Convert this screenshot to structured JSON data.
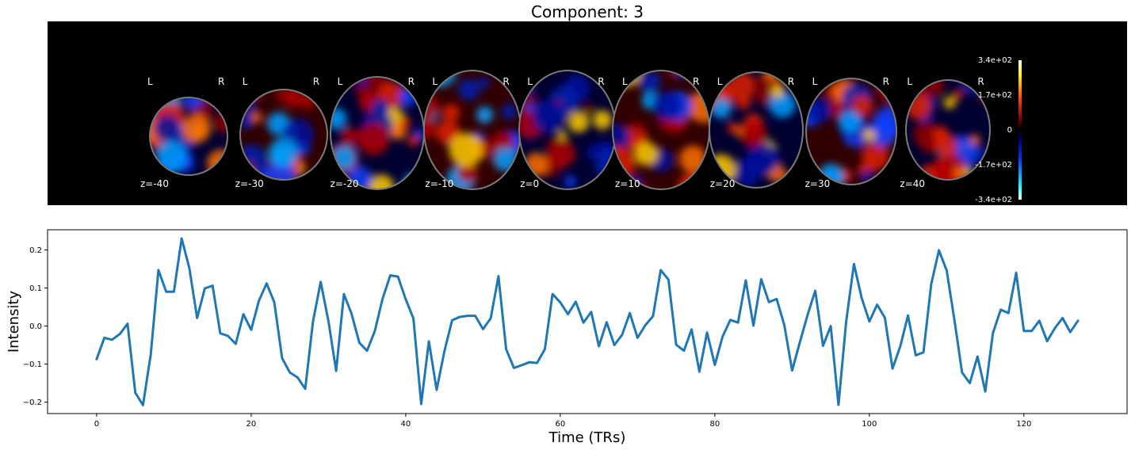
{
  "title": "Component: 3",
  "brain_panel": {
    "orientation_left": "L",
    "orientation_right": "R",
    "slices": [
      "z=-40",
      "z=-30",
      "z=-20",
      "z=-10",
      "z=0",
      "z=10",
      "z=20",
      "z=30",
      "z=40"
    ],
    "colorbar": {
      "ticks": [
        "3.4e+02",
        "1.7e+02",
        "0",
        "-1.7e+02",
        "-3.4e+02"
      ],
      "values": [
        340,
        170,
        0,
        -170,
        -340
      ],
      "colors": [
        "#ffffff",
        "#ffff00",
        "#ff4000",
        "#800000",
        "#000000",
        "#000080",
        "#0040ff",
        "#00ffff",
        "#ffffff"
      ]
    }
  },
  "chart_data": {
    "type": "line",
    "xlabel": "Time (TRs)",
    "ylabel": "Intensity",
    "xlim": [
      -6.35,
      133.35
    ],
    "ylim": [
      -0.23,
      0.253
    ],
    "xticks": [
      0,
      20,
      40,
      60,
      80,
      100,
      120
    ],
    "yticks": [
      -0.2,
      -0.1,
      0.0,
      0.1,
      0.2
    ],
    "ytick_labels": [
      "−0.2",
      "−0.1",
      "0.0",
      "0.1",
      "0.2"
    ],
    "grid": false,
    "series": [
      {
        "color": "#1f77b4",
        "x": [
          0,
          1,
          2,
          3,
          4,
          5,
          6,
          7,
          8,
          9,
          10,
          11,
          12,
          13,
          14,
          15,
          16,
          17,
          18,
          19,
          20,
          21,
          22,
          23,
          24,
          25,
          26,
          27,
          28,
          29,
          30,
          31,
          32,
          33,
          34,
          35,
          36,
          37,
          38,
          39,
          40,
          41,
          42,
          43,
          44,
          45,
          46,
          47,
          48,
          49,
          50,
          51,
          52,
          53,
          54,
          55,
          56,
          57,
          58,
          59,
          60,
          61,
          62,
          63,
          64,
          65,
          66,
          67,
          68,
          69,
          70,
          71,
          72,
          73,
          74,
          75,
          76,
          77,
          78,
          79,
          80,
          81,
          82,
          83,
          84,
          85,
          86,
          87,
          88,
          89,
          90,
          91,
          92,
          93,
          94,
          95,
          96,
          97,
          98,
          99,
          100,
          101,
          102,
          103,
          104,
          105,
          106,
          107,
          108,
          109,
          110,
          111,
          112,
          113,
          114,
          115,
          116,
          117,
          118,
          119,
          120,
          121,
          122,
          123,
          124,
          125,
          126,
          127
        ],
        "y": [
          -0.087,
          -0.031,
          -0.036,
          -0.021,
          0.006,
          -0.175,
          -0.208,
          -0.075,
          0.147,
          0.09,
          0.09,
          0.23,
          0.152,
          0.021,
          0.099,
          0.106,
          -0.019,
          -0.026,
          -0.047,
          0.031,
          -0.01,
          0.066,
          0.112,
          0.062,
          -0.084,
          -0.122,
          -0.135,
          -0.165,
          0.012,
          0.116,
          0.013,
          -0.118,
          0.084,
          0.032,
          -0.044,
          -0.065,
          -0.013,
          0.071,
          0.133,
          0.13,
          0.07,
          0.02,
          -0.205,
          -0.04,
          -0.168,
          -0.067,
          0.015,
          0.024,
          0.027,
          0.027,
          -0.008,
          0.02,
          0.131,
          -0.061,
          -0.11,
          -0.103,
          -0.095,
          -0.097,
          -0.061,
          0.084,
          0.062,
          0.031,
          0.064,
          0.009,
          0.037,
          -0.053,
          0.01,
          -0.05,
          -0.023,
          0.034,
          -0.031,
          0.002,
          0.026,
          0.147,
          0.122,
          -0.049,
          -0.065,
          -0.009,
          -0.12,
          -0.017,
          -0.102,
          -0.028,
          0.016,
          0.009,
          0.12,
          0.001,
          0.123,
          0.063,
          0.071,
          0.002,
          -0.117,
          -0.043,
          0.029,
          0.093,
          -0.052,
          0.0,
          -0.207,
          0.012,
          0.163,
          0.074,
          0.012,
          0.056,
          0.022,
          -0.112,
          -0.053,
          0.028,
          -0.077,
          -0.069,
          0.11,
          0.199,
          0.146,
          0.017,
          -0.122,
          -0.15,
          -0.08,
          -0.172,
          -0.018,
          0.043,
          0.034,
          0.14,
          -0.013,
          -0.013,
          0.014,
          -0.04,
          -0.006,
          0.021,
          -0.016,
          0.014
        ]
      }
    ]
  }
}
